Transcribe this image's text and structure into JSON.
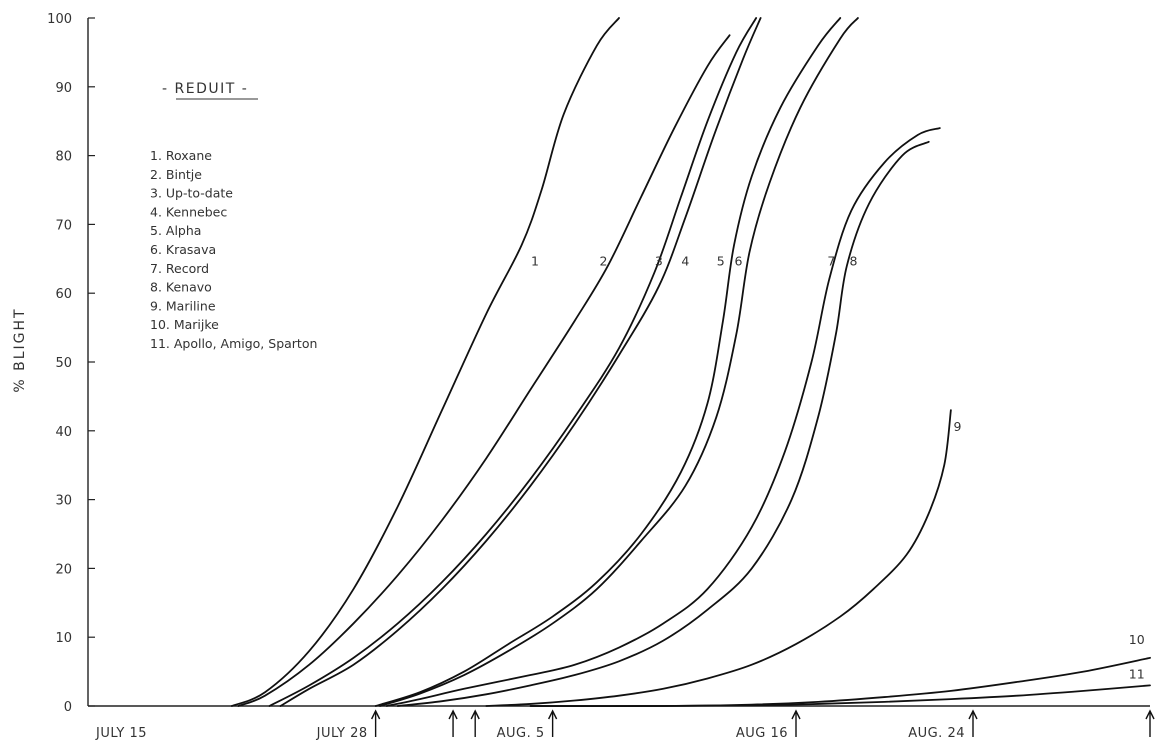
{
  "chart_data": {
    "type": "line",
    "title": "",
    "ylabel": "% BLIGHT",
    "xlabel": "",
    "ylim": [
      0,
      100
    ],
    "xlim": [
      0,
      48
    ],
    "yticks": [
      0,
      10,
      20,
      30,
      40,
      50,
      60,
      70,
      80,
      90,
      100
    ],
    "xtick_labels": [
      {
        "x": 0,
        "label": "JULY 15"
      },
      {
        "x": 13,
        "label": "JULY 28"
      },
      {
        "x": 21,
        "label": "AUG. 5"
      },
      {
        "x": 32,
        "label": "AUG 16"
      },
      {
        "x": 40,
        "label": "AUG. 24"
      }
    ],
    "spray_arrows_x": [
      13,
      16.5,
      17.5,
      21,
      32,
      40,
      48
    ],
    "legend": {
      "title": "- REDUIT -",
      "items": [
        "1. Roxane",
        "2. Bintje",
        "3. Up-to-date",
        "4. Kennebec",
        "5. Alpha",
        "6. Krasava",
        "7. Record",
        "8. Kenavo",
        "9. Mariline",
        "10. Marijke",
        "11. Apollo, Amigo, Sparton"
      ]
    },
    "series": [
      {
        "name": "1",
        "label_at": [
          20.2,
          64
        ],
        "points": [
          [
            6.5,
            0
          ],
          [
            8,
            2
          ],
          [
            10,
            8
          ],
          [
            12,
            17
          ],
          [
            14,
            29
          ],
          [
            16,
            43
          ],
          [
            18,
            57
          ],
          [
            19.6,
            67
          ],
          [
            20.5,
            75
          ],
          [
            21.5,
            86
          ],
          [
            23,
            96
          ],
          [
            24,
            100
          ]
        ]
      },
      {
        "name": "2",
        "label_at": [
          23.3,
          64
        ],
        "points": [
          [
            6.8,
            0
          ],
          [
            8,
            1.5
          ],
          [
            10,
            6
          ],
          [
            12,
            12
          ],
          [
            14,
            19
          ],
          [
            16,
            27
          ],
          [
            18,
            36
          ],
          [
            20,
            46
          ],
          [
            22,
            56
          ],
          [
            23.5,
            64
          ],
          [
            25,
            74
          ],
          [
            26.5,
            84
          ],
          [
            28,
            93
          ],
          [
            29,
            97.5
          ]
        ]
      },
      {
        "name": "3",
        "label_at": [
          25.8,
          64
        ],
        "points": [
          [
            8.2,
            0
          ],
          [
            10,
            3
          ],
          [
            12,
            7
          ],
          [
            14,
            12
          ],
          [
            16,
            18
          ],
          [
            18,
            25
          ],
          [
            20,
            33
          ],
          [
            22,
            42
          ],
          [
            24,
            52
          ],
          [
            25.6,
            63
          ],
          [
            26.8,
            74
          ],
          [
            28,
            85
          ],
          [
            29.3,
            95
          ],
          [
            30.2,
            100
          ]
        ]
      },
      {
        "name": "4",
        "label_at": [
          27,
          64
        ],
        "points": [
          [
            8.7,
            0
          ],
          [
            10,
            2.5
          ],
          [
            12,
            6
          ],
          [
            14,
            11
          ],
          [
            16,
            17
          ],
          [
            18,
            24
          ],
          [
            20,
            32
          ],
          [
            22,
            41
          ],
          [
            24,
            51
          ],
          [
            25.8,
            61
          ],
          [
            27,
            71
          ],
          [
            28.3,
            83
          ],
          [
            29.6,
            94
          ],
          [
            30.4,
            100
          ]
        ]
      },
      {
        "name": "5",
        "label_at": [
          28.6,
          64
        ],
        "points": [
          [
            13,
            0
          ],
          [
            15,
            2
          ],
          [
            17,
            5
          ],
          [
            19,
            9
          ],
          [
            21,
            13
          ],
          [
            23,
            18
          ],
          [
            25,
            25
          ],
          [
            26.8,
            34
          ],
          [
            28,
            44
          ],
          [
            28.7,
            56
          ],
          [
            29.2,
            67
          ],
          [
            30,
            77
          ],
          [
            31.3,
            87
          ],
          [
            33,
            96
          ],
          [
            34,
            100
          ]
        ]
      },
      {
        "name": "6",
        "label_at": [
          29.4,
          64
        ],
        "points": [
          [
            13.2,
            0
          ],
          [
            15,
            1.8
          ],
          [
            17,
            4.5
          ],
          [
            19,
            8
          ],
          [
            21,
            12
          ],
          [
            23,
            17
          ],
          [
            25,
            24
          ],
          [
            27,
            32
          ],
          [
            28.4,
            42
          ],
          [
            29.3,
            54
          ],
          [
            29.9,
            66
          ],
          [
            30.8,
            76
          ],
          [
            32.2,
            87
          ],
          [
            34,
            97
          ],
          [
            34.8,
            100
          ]
        ]
      },
      {
        "name": "7",
        "label_at": [
          33.6,
          64
        ],
        "points": [
          [
            13.5,
            0
          ],
          [
            15,
            1
          ],
          [
            17,
            2.5
          ],
          [
            20,
            4.5
          ],
          [
            22,
            6
          ],
          [
            24,
            8.5
          ],
          [
            26,
            12
          ],
          [
            28,
            17
          ],
          [
            30,
            26
          ],
          [
            31.5,
            37
          ],
          [
            32.7,
            50
          ],
          [
            33.5,
            62
          ],
          [
            34.5,
            72
          ],
          [
            36,
            79
          ],
          [
            37.5,
            83
          ],
          [
            38.5,
            84
          ]
        ]
      },
      {
        "name": "8",
        "label_at": [
          34.6,
          64
        ],
        "points": [
          [
            14,
            0
          ],
          [
            16,
            0.7
          ],
          [
            18,
            1.7
          ],
          [
            20,
            3
          ],
          [
            22,
            4.5
          ],
          [
            24,
            6.5
          ],
          [
            26,
            9.5
          ],
          [
            28,
            14
          ],
          [
            30,
            20
          ],
          [
            31.8,
            30
          ],
          [
            33,
            42
          ],
          [
            33.8,
            54
          ],
          [
            34.3,
            64
          ],
          [
            35.3,
            73
          ],
          [
            36.8,
            80
          ],
          [
            38,
            82
          ]
        ]
      },
      {
        "name": "9",
        "label_at": [
          39.3,
          40
        ],
        "points": [
          [
            18,
            0
          ],
          [
            20,
            0.3
          ],
          [
            22,
            0.8
          ],
          [
            24,
            1.5
          ],
          [
            26,
            2.5
          ],
          [
            28,
            4
          ],
          [
            30,
            6
          ],
          [
            32,
            9
          ],
          [
            34,
            13
          ],
          [
            35.5,
            17
          ],
          [
            37,
            22
          ],
          [
            38,
            28
          ],
          [
            38.7,
            35
          ],
          [
            39,
            43
          ]
        ]
      },
      {
        "name": "10",
        "label_at": [
          47.4,
          9
        ],
        "points": [
          [
            20,
            0
          ],
          [
            26,
            0
          ],
          [
            30,
            0.2
          ],
          [
            33,
            0.6
          ],
          [
            36,
            1.3
          ],
          [
            39,
            2.2
          ],
          [
            42,
            3.5
          ],
          [
            45,
            5
          ],
          [
            48,
            7
          ]
        ]
      },
      {
        "name": "11",
        "label_at": [
          47.4,
          4
        ],
        "points": [
          [
            20,
            0
          ],
          [
            26,
            0
          ],
          [
            30,
            0.1
          ],
          [
            33,
            0.3
          ],
          [
            36,
            0.6
          ],
          [
            39,
            1
          ],
          [
            42,
            1.5
          ],
          [
            45,
            2.2
          ],
          [
            48,
            3
          ]
        ]
      }
    ]
  }
}
